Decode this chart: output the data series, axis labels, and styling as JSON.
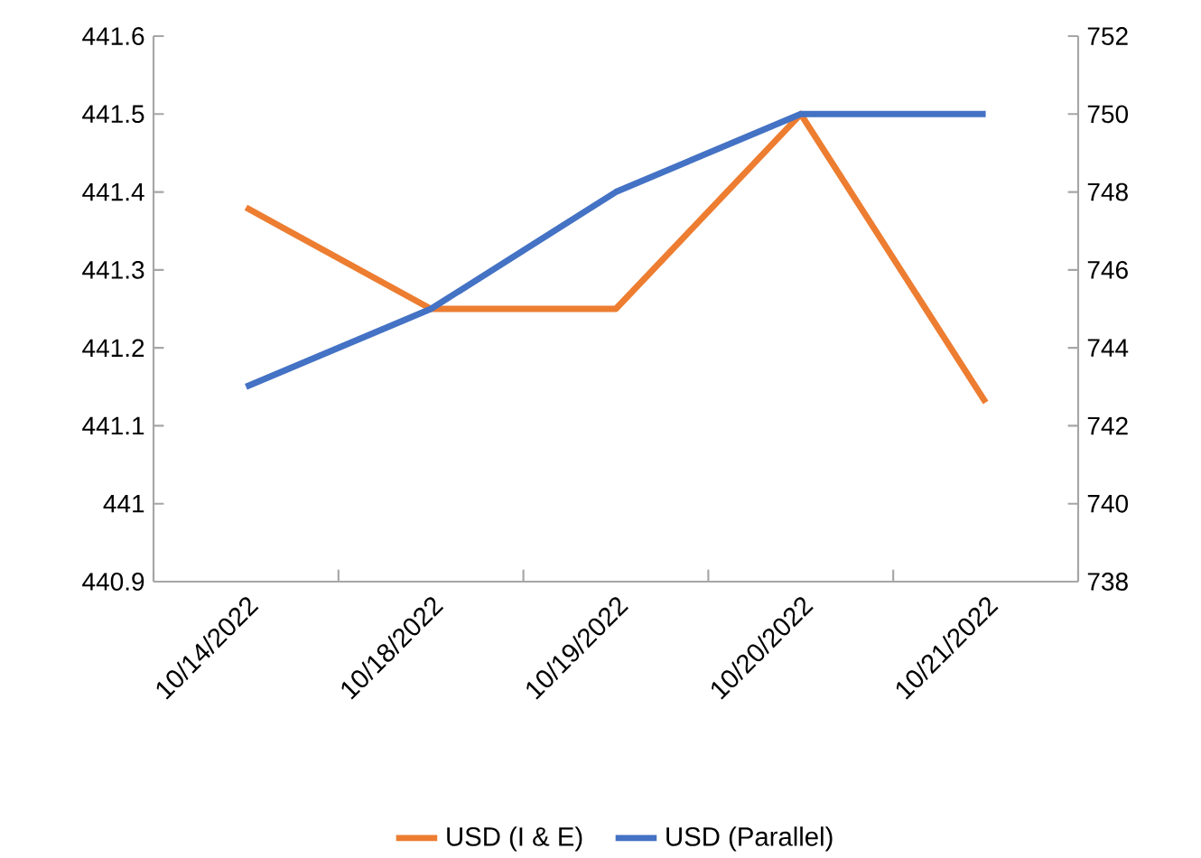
{
  "chart_data": {
    "type": "line",
    "categories": [
      "10/14/2022",
      "10/18/2022",
      "10/19/2022",
      "10/20/2022",
      "10/21/2022"
    ],
    "series": [
      {
        "name": "USD (I & E)",
        "color": "#ed7d31",
        "values": [
          441.38,
          441.25,
          441.25,
          441.5,
          441.13
        ]
      },
      {
        "name": "USD (Parallel)",
        "color": "#4472c4",
        "axis": "y2",
        "values": [
          743,
          745,
          748,
          750,
          750
        ]
      }
    ],
    "ylim": [
      440.9,
      441.6
    ],
    "yticks": [
      440.9,
      {
        "value": 441.0,
        "label": "441"
      },
      441.1,
      441.2,
      441.3,
      441.4,
      441.5,
      441.6
    ],
    "y2lim": [
      738,
      752
    ],
    "y2ticks": [
      738,
      740,
      742,
      744,
      746,
      748,
      750,
      752
    ],
    "grid": false,
    "legend": "bottom"
  }
}
